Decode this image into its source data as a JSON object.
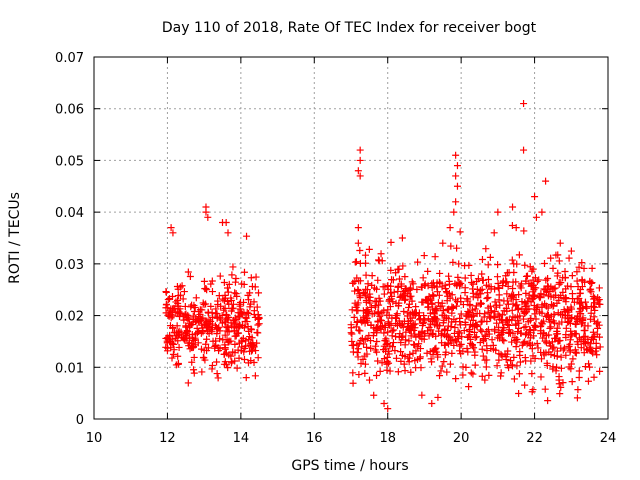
{
  "chart_data": {
    "type": "scatter",
    "title": "Day 110 of 2018, Rate Of TEC Index for receiver bogt",
    "xlabel": "GPS time / hours",
    "ylabel": "ROTI / TECUs",
    "xlim": [
      10,
      24
    ],
    "ylim": [
      0,
      0.07
    ],
    "xticks": [
      10,
      12,
      14,
      16,
      18,
      20,
      22,
      24
    ],
    "xtick_labels": [
      "10",
      "12",
      "14",
      "16",
      "18",
      "20",
      "22",
      "24"
    ],
    "yticks": [
      0,
      0.01,
      0.02,
      0.03,
      0.04,
      0.05,
      0.06,
      0.07
    ],
    "ytick_labels": [
      "0",
      "0.01",
      "0.02",
      "0.03",
      "0.04",
      "0.05",
      "0.06",
      "0.07"
    ],
    "grid": true,
    "marker": "+",
    "color": "#ff0000",
    "series": [
      {
        "name": "ROTI",
        "clusters": [
          {
            "x_range": [
              11.95,
              14.5
            ],
            "y_typical": [
              0.005,
              0.027
            ],
            "count": 420
          },
          {
            "x_range": [
              17.0,
              23.8
            ],
            "y_typical": [
              0.003,
              0.031
            ],
            "count": 1200
          }
        ],
        "notable_points": [
          {
            "x": 12.1,
            "y": 0.037
          },
          {
            "x": 12.15,
            "y": 0.036
          },
          {
            "x": 13.05,
            "y": 0.041
          },
          {
            "x": 13.05,
            "y": 0.04
          },
          {
            "x": 13.1,
            "y": 0.039
          },
          {
            "x": 13.5,
            "y": 0.038
          },
          {
            "x": 13.6,
            "y": 0.038
          },
          {
            "x": 13.65,
            "y": 0.036
          },
          {
            "x": 17.25,
            "y": 0.052
          },
          {
            "x": 17.25,
            "y": 0.05
          },
          {
            "x": 17.2,
            "y": 0.048
          },
          {
            "x": 17.25,
            "y": 0.047
          },
          {
            "x": 17.2,
            "y": 0.037
          },
          {
            "x": 17.2,
            "y": 0.034
          },
          {
            "x": 19.85,
            "y": 0.051
          },
          {
            "x": 19.9,
            "y": 0.049
          },
          {
            "x": 19.85,
            "y": 0.047
          },
          {
            "x": 19.9,
            "y": 0.045
          },
          {
            "x": 19.85,
            "y": 0.042
          },
          {
            "x": 19.8,
            "y": 0.04
          },
          {
            "x": 19.7,
            "y": 0.037
          },
          {
            "x": 21.7,
            "y": 0.061
          },
          {
            "x": 21.7,
            "y": 0.052
          },
          {
            "x": 22.3,
            "y": 0.046
          },
          {
            "x": 22.2,
            "y": 0.04
          },
          {
            "x": 21.4,
            "y": 0.041
          },
          {
            "x": 21.0,
            "y": 0.04
          },
          {
            "x": 18.4,
            "y": 0.035
          },
          {
            "x": 20.9,
            "y": 0.036
          },
          {
            "x": 22.0,
            "y": 0.043
          },
          {
            "x": 22.05,
            "y": 0.039
          },
          {
            "x": 22.7,
            "y": 0.034
          },
          {
            "x": 19.5,
            "y": 0.034
          },
          {
            "x": 21.5,
            "y": 0.037
          },
          {
            "x": 17.9,
            "y": 0.003
          },
          {
            "x": 19.2,
            "y": 0.003
          },
          {
            "x": 18.0,
            "y": 0.002
          }
        ]
      }
    ]
  }
}
